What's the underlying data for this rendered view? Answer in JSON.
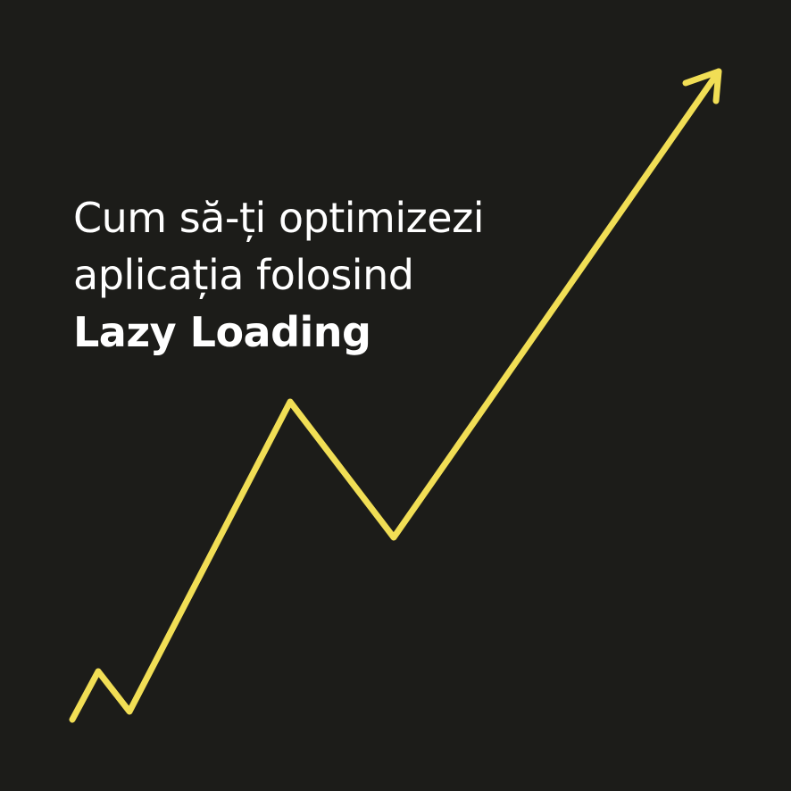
{
  "colors": {
    "background": "#1c1c19",
    "text": "#ffffff",
    "accent": "#f1de55"
  },
  "headline": {
    "line1": "Cum să-ți optimizezi",
    "line2": "aplicația folosind",
    "line3": "Lazy Loading"
  },
  "graphic": {
    "icon": "trend-up-arrow-icon"
  }
}
